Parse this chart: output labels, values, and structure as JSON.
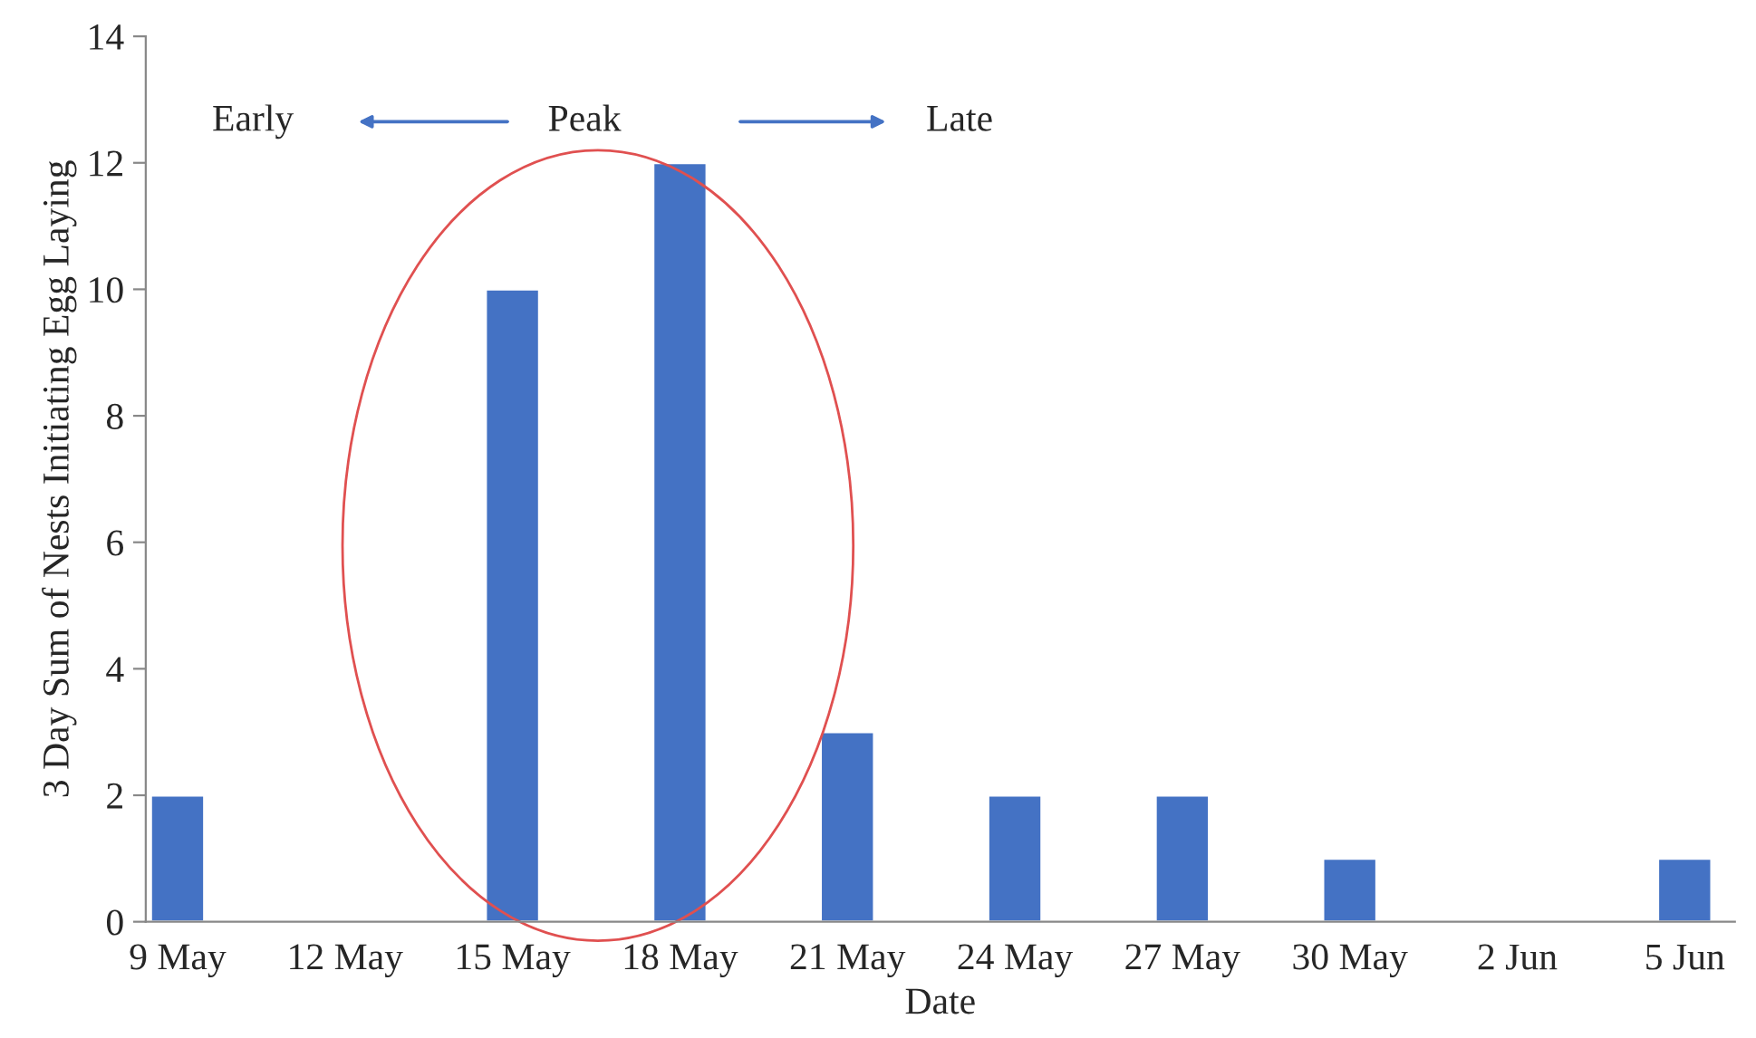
{
  "chart_data": {
    "type": "bar",
    "xlabel": "Date",
    "ylabel": "3 Day Sum of Nests Initiating Egg Laying",
    "categories": [
      "9 May",
      "12 May",
      "15 May",
      "18 May",
      "21 May",
      "24 May",
      "27 May",
      "30 May",
      "2 Jun",
      "5 Jun"
    ],
    "values": [
      2,
      0,
      10,
      12,
      3,
      2,
      2,
      1,
      0,
      1
    ],
    "color": "#4472c4",
    "ylim": [
      0,
      14
    ],
    "yticks": [
      0,
      2,
      4,
      6,
      8,
      10,
      12,
      14
    ],
    "grid": false,
    "annotations": [
      "Early",
      "Peak",
      "Late"
    ]
  }
}
